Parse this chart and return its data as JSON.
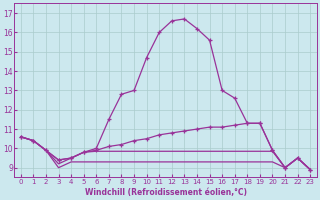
{
  "xlabel": "Windchill (Refroidissement éolien,°C)",
  "background_color": "#cce8ee",
  "grid_color": "#aacccc",
  "line_color": "#993399",
  "xlim": [
    -0.5,
    23.5
  ],
  "ylim": [
    8.5,
    17.5
  ],
  "yticks": [
    9,
    10,
    11,
    12,
    13,
    14,
    15,
    16,
    17
  ],
  "xticks": [
    0,
    1,
    2,
    3,
    4,
    5,
    6,
    7,
    8,
    9,
    10,
    11,
    12,
    13,
    14,
    15,
    16,
    17,
    18,
    19,
    20,
    21,
    22,
    23
  ],
  "line_peak_x": [
    0,
    1,
    2,
    3,
    4,
    5,
    6,
    7,
    8,
    9,
    10,
    11,
    12,
    13,
    14,
    15,
    16,
    17,
    18,
    19,
    20,
    21,
    22,
    23
  ],
  "line_peak_y": [
    10.6,
    10.4,
    9.9,
    9.4,
    9.5,
    9.8,
    10.0,
    11.5,
    12.8,
    13.0,
    14.7,
    16.0,
    16.6,
    16.7,
    16.2,
    15.6,
    13.0,
    12.6,
    11.3,
    11.3,
    9.9,
    9.0,
    9.5,
    8.9
  ],
  "line_mid_x": [
    0,
    1,
    2,
    3,
    4,
    5,
    6,
    7,
    8,
    9,
    10,
    11,
    12,
    13,
    14,
    15,
    16,
    17,
    18,
    19,
    20,
    21,
    22,
    23
  ],
  "line_mid_y": [
    10.6,
    10.4,
    9.9,
    9.4,
    9.5,
    9.8,
    9.9,
    10.1,
    10.2,
    10.4,
    10.5,
    10.7,
    10.8,
    10.9,
    11.0,
    11.1,
    11.1,
    11.2,
    11.3,
    11.3,
    9.9,
    9.0,
    9.5,
    8.9
  ],
  "line_low1_x": [
    0,
    1,
    2,
    3,
    4,
    5,
    6,
    7,
    8,
    9,
    10,
    11,
    12,
    13,
    14,
    15,
    16,
    17,
    18,
    19,
    20,
    21,
    22,
    23
  ],
  "line_low1_y": [
    10.6,
    10.4,
    9.9,
    9.2,
    9.5,
    9.8,
    9.85,
    9.85,
    9.85,
    9.85,
    9.85,
    9.85,
    9.85,
    9.85,
    9.85,
    9.85,
    9.85,
    9.85,
    9.85,
    9.85,
    9.85,
    9.0,
    9.5,
    8.9
  ],
  "line_low2_x": [
    0,
    1,
    2,
    3,
    4,
    5,
    6,
    7,
    8,
    9,
    10,
    11,
    12,
    13,
    14,
    15,
    16,
    17,
    18,
    19,
    20,
    21,
    22,
    23
  ],
  "line_low2_y": [
    10.6,
    10.4,
    9.9,
    9.0,
    9.3,
    9.3,
    9.3,
    9.3,
    9.3,
    9.3,
    9.3,
    9.3,
    9.3,
    9.3,
    9.3,
    9.3,
    9.3,
    9.3,
    9.3,
    9.3,
    9.3,
    9.0,
    9.5,
    8.9
  ]
}
